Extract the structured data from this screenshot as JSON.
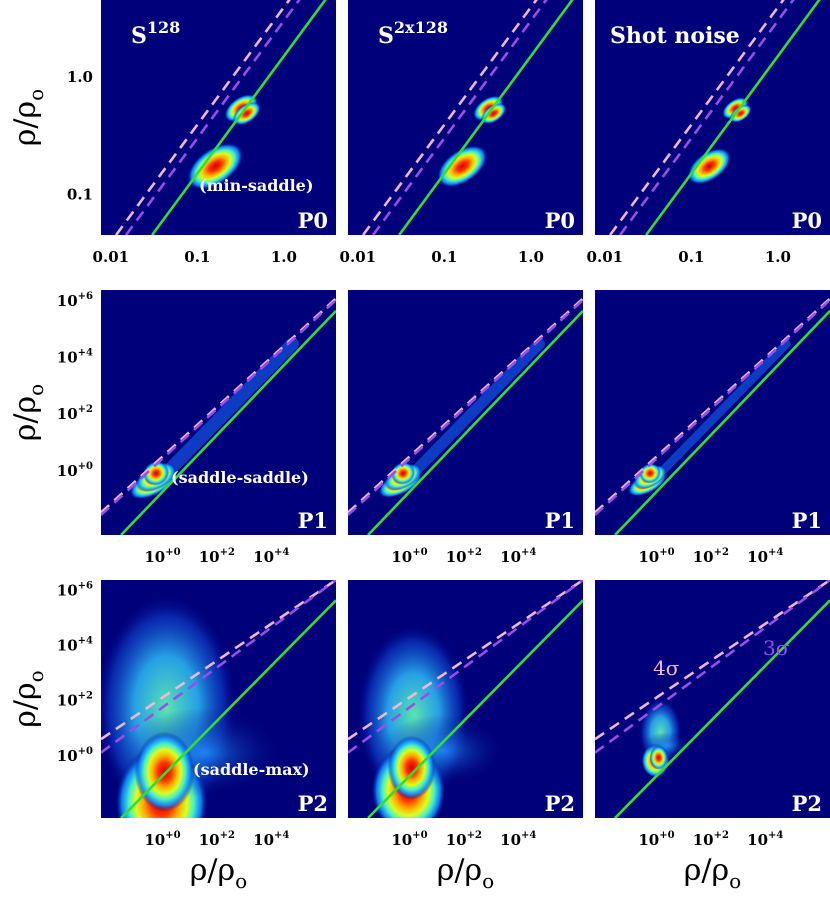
{
  "chart_data": {
    "type": "heatmap",
    "grid_layout": "3x3",
    "column_titles": [
      {
        "base": "S",
        "sup": "128"
      },
      {
        "base": "S",
        "sup": "2x128"
      },
      {
        "base": "Shot noise",
        "sup": ""
      }
    ],
    "row_tags": [
      "P0",
      "P1",
      "P2"
    ],
    "row_notes": [
      "(min-saddle)",
      "(saddle-saddle)",
      "(saddle-max)"
    ],
    "axis_label": {
      "base": "ρ/ρ",
      "sub": "o"
    },
    "sigma_labels": [
      "4σ",
      "3σ"
    ],
    "colors": {
      "background": "#00007a",
      "identity_line": "#33dd33",
      "sigma4_line": "#f0b8d8",
      "sigma3_line": "#9a4ee6"
    },
    "rows": [
      {
        "scale": "log",
        "xlim": [
          0.0077,
          4.0
        ],
        "ylim": [
          0.045,
          4.5
        ],
        "x_ticks": [
          {
            "value": 0.01,
            "label": "0.01"
          },
          {
            "value": 0.1,
            "label": "0.1"
          },
          {
            "value": 1.0,
            "label": "1.0"
          }
        ],
        "y_ticks": [
          {
            "value": 0.1,
            "label": "0.1"
          },
          {
            "value": 1.0,
            "label": "1.0"
          }
        ],
        "identity_line": [
          [
            0.03,
            0.045
          ],
          [
            4.0,
            6.0
          ]
        ],
        "sigma3_line": [
          [
            0.015,
            0.045
          ],
          [
            4.0,
            12.0
          ]
        ],
        "sigma4_line": [
          [
            0.0115,
            0.045
          ],
          [
            4.0,
            15.6
          ]
        ]
      },
      {
        "scale": "log",
        "xlim": [
          0.0055,
          2400000
        ],
        "ylim": [
          0.0055,
          2400000
        ],
        "x_ticks": [
          {
            "value": 1,
            "label": "10",
            "sup": "+0"
          },
          {
            "value": 100,
            "label": "10",
            "sup": "+2"
          },
          {
            "value": 10000,
            "label": "10",
            "sup": "+4"
          }
        ],
        "y_ticks": [
          {
            "value": 1,
            "label": "10",
            "sup": "+0"
          },
          {
            "value": 100,
            "label": "10",
            "sup": "+2"
          },
          {
            "value": 10000,
            "label": "10",
            "sup": "+4"
          },
          {
            "value": 1000000,
            "label": "10",
            "sup": "+6"
          }
        ],
        "identity_line": [
          [
            0.03,
            0.0055
          ],
          [
            2400000,
            440000
          ]
        ],
        "sigma3_line": [
          [
            0.0055,
            0.028
          ],
          [
            2400000,
            1060000
          ]
        ],
        "sigma4_line": [
          [
            0.0055,
            0.034
          ],
          [
            2400000,
            1200000
          ]
        ]
      },
      {
        "scale": "log",
        "xlim": [
          0.0055,
          2400000
        ],
        "ylim": [
          0.0055,
          2400000
        ],
        "x_ticks": [
          {
            "value": 1,
            "label": "10",
            "sup": "+0"
          },
          {
            "value": 100,
            "label": "10",
            "sup": "+2"
          },
          {
            "value": 10000,
            "label": "10",
            "sup": "+4"
          }
        ],
        "y_ticks": [
          {
            "value": 1,
            "label": "10",
            "sup": "+0"
          },
          {
            "value": 100,
            "label": "10",
            "sup": "+2"
          },
          {
            "value": 10000,
            "label": "10",
            "sup": "+4"
          },
          {
            "value": 1000000,
            "label": "10",
            "sup": "+6"
          }
        ],
        "identity_line": [
          [
            0.03,
            0.0055
          ],
          [
            2400000,
            440000
          ]
        ],
        "sigma3_line": [
          [
            0.0055,
            1.3
          ],
          [
            2400000,
            2400000
          ]
        ],
        "sigma4_line": [
          [
            0.0055,
            4.0
          ],
          [
            2400000,
            2400000
          ]
        ]
      }
    ],
    "density_blobs": [
      [
        {
          "x": 0.13,
          "y": 0.16,
          "spread": 1.0,
          "kind": "wedge"
        },
        {
          "x": 0.26,
          "y": 0.5,
          "spread": 0.6,
          "kind": "wedge"
        },
        {
          "x": 0.3,
          "y": 0.45,
          "spread": 0.5,
          "kind": "wedge"
        }
      ],
      [
        {
          "x": 0.2,
          "y": 0.25,
          "spread": 1.2,
          "kind": "band"
        },
        {
          "x": 0.25,
          "y": 0.4,
          "spread": 1.0,
          "kind": "band"
        },
        {
          "x": 0.25,
          "y": 0.55,
          "spread": 0.6,
          "kind": "band"
        }
      ],
      [
        {
          "x": 0.6,
          "y": 3,
          "spread": 4,
          "kind": "plume"
        },
        {
          "x": 0.8,
          "y": 3,
          "spread": 3.5,
          "kind": "plume"
        },
        {
          "x": 1.2,
          "y": 1.4,
          "spread": 1.2,
          "kind": "plume"
        }
      ]
    ]
  }
}
